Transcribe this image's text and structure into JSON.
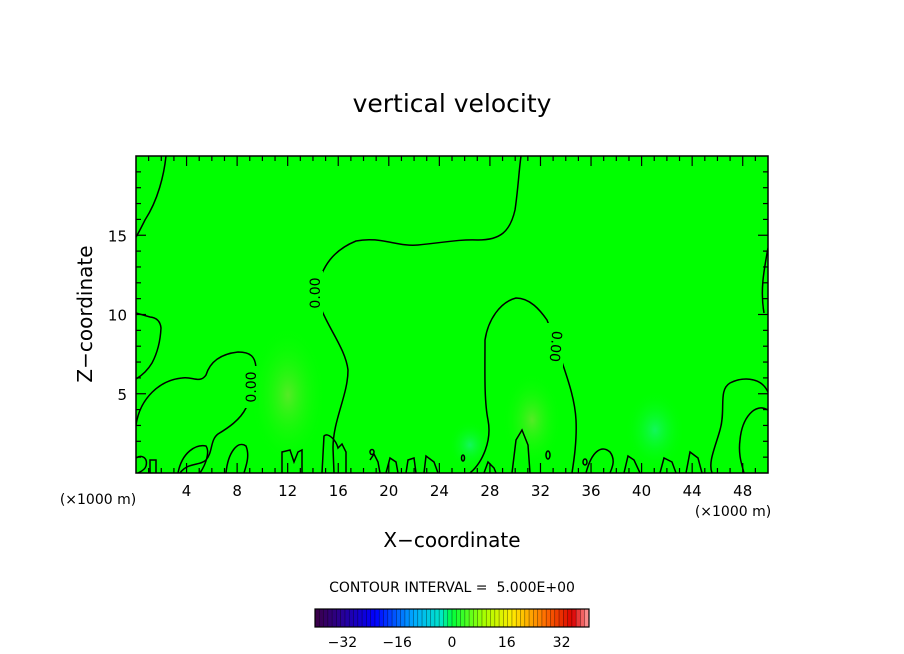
{
  "chart_data": {
    "type": "contour",
    "title": "vertical velocity",
    "xlabel": "X−coordinate",
    "ylabel": "Z−coordinate",
    "x_unit_left": "(×1000 m)",
    "x_unit_right": "(×1000 m)",
    "xlim": [
      0,
      50
    ],
    "ylim": [
      0,
      20
    ],
    "x_ticks": [
      4,
      8,
      12,
      16,
      20,
      24,
      28,
      32,
      36,
      40,
      44,
      48
    ],
    "y_ticks": [
      5,
      10,
      15
    ],
    "contour_labels": [
      "0.00",
      "0.00",
      "0.00"
    ],
    "contour_interval_text": "CONTOUR INTERVAL =  5.000E+00",
    "colorbar": {
      "min": -40,
      "max": 40,
      "tick_values": [
        -32,
        -16,
        0,
        16,
        32
      ],
      "tick_labels": [
        "−32",
        "−16",
        "0",
        "16",
        "32"
      ]
    },
    "colors": {
      "field_background": "#00ff00",
      "contour_line": "#000000"
    }
  }
}
